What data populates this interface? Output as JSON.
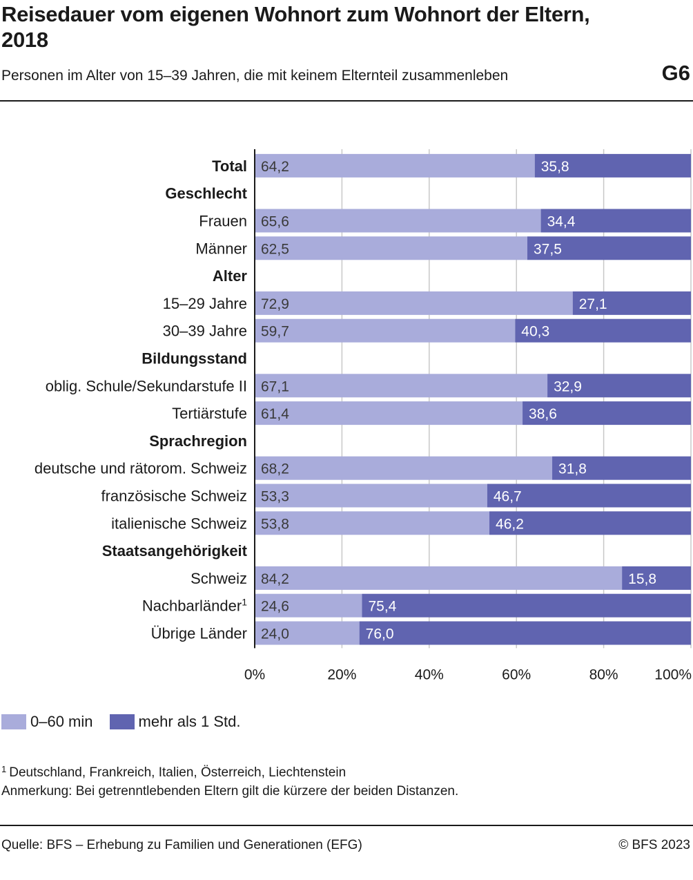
{
  "header": {
    "title": "Reisedauer vom eigenen Wohnort zum Wohnort der Eltern, 2018",
    "subtitle": "Personen im Alter von 15–39 Jahren, die mit keinem Elternteil zusammenleben",
    "code": "G6"
  },
  "legend": {
    "items": [
      {
        "label": "0–60 min",
        "color": "#a9acdb"
      },
      {
        "label": "mehr als 1 Std.",
        "color": "#6064b0"
      }
    ]
  },
  "notes": {
    "footnote_marker": "1",
    "footnote": "Deutschland, Frankreich, Italien, Österreich, Liechtenstein",
    "remark": "Anmerkung: Bei getrenntlebenden Eltern gilt die kürzere der beiden Distanzen."
  },
  "footer": {
    "source": "Quelle: BFS – Erhebung zu Familien und Generationen (EFG)",
    "copyright": "© BFS 2023"
  },
  "chart_data": {
    "type": "bar",
    "orientation": "horizontal",
    "stacked": true,
    "title": "Reisedauer vom eigenen Wohnort zum Wohnort der Eltern, 2018",
    "xlim": [
      0,
      100
    ],
    "x_ticks": [
      "0%",
      "20%",
      "40%",
      "60%",
      "80%",
      "100%"
    ],
    "grid": true,
    "legend_position": "bottom-left",
    "series_names": [
      "0–60 min",
      "mehr als 1 Std."
    ],
    "series_colors": [
      "#a9acdb",
      "#6064b0"
    ],
    "rows": [
      {
        "label": "Total",
        "bold": true,
        "values": [
          64.2,
          35.8
        ],
        "value_labels": [
          "64,2",
          "35,8"
        ]
      },
      {
        "label": "Geschlecht",
        "header": true
      },
      {
        "label": "Frauen",
        "values": [
          65.6,
          34.4
        ],
        "value_labels": [
          "65,6",
          "34,4"
        ]
      },
      {
        "label": "Männer",
        "values": [
          62.5,
          37.5
        ],
        "value_labels": [
          "62,5",
          "37,5"
        ]
      },
      {
        "label": "Alter",
        "header": true
      },
      {
        "label": "15–29 Jahre",
        "values": [
          72.9,
          27.1
        ],
        "value_labels": [
          "72,9",
          "27,1"
        ]
      },
      {
        "label": "30–39 Jahre",
        "values": [
          59.7,
          40.3
        ],
        "value_labels": [
          "59,7",
          "40,3"
        ]
      },
      {
        "label": "Bildungsstand",
        "header": true
      },
      {
        "label": "oblig. Schule/Sekundarstufe II",
        "values": [
          67.1,
          32.9
        ],
        "value_labels": [
          "67,1",
          "32,9"
        ]
      },
      {
        "label": "Tertiärstufe",
        "values": [
          61.4,
          38.6
        ],
        "value_labels": [
          "61,4",
          "38,6"
        ]
      },
      {
        "label": "Sprachregion",
        "header": true
      },
      {
        "label": "deutsche und rätorom. Schweiz",
        "values": [
          68.2,
          31.8
        ],
        "value_labels": [
          "68,2",
          "31,8"
        ]
      },
      {
        "label": "französische Schweiz",
        "values": [
          53.3,
          46.7
        ],
        "value_labels": [
          "53,3",
          "46,7"
        ]
      },
      {
        "label": "italienische Schweiz",
        "values": [
          53.8,
          46.2
        ],
        "value_labels": [
          "53,8",
          "46,2"
        ]
      },
      {
        "label": "Staatsangehörigkeit",
        "header": true
      },
      {
        "label": "Schweiz",
        "values": [
          84.2,
          15.8
        ],
        "value_labels": [
          "84,2",
          "15,8"
        ]
      },
      {
        "label": "Nachbarländer",
        "footnote": "1",
        "values": [
          24.6,
          75.4
        ],
        "value_labels": [
          "24,6",
          "75,4"
        ]
      },
      {
        "label": "Übrige Länder",
        "values": [
          24.0,
          76.0
        ],
        "value_labels": [
          "24,0",
          "76,0"
        ]
      }
    ]
  }
}
